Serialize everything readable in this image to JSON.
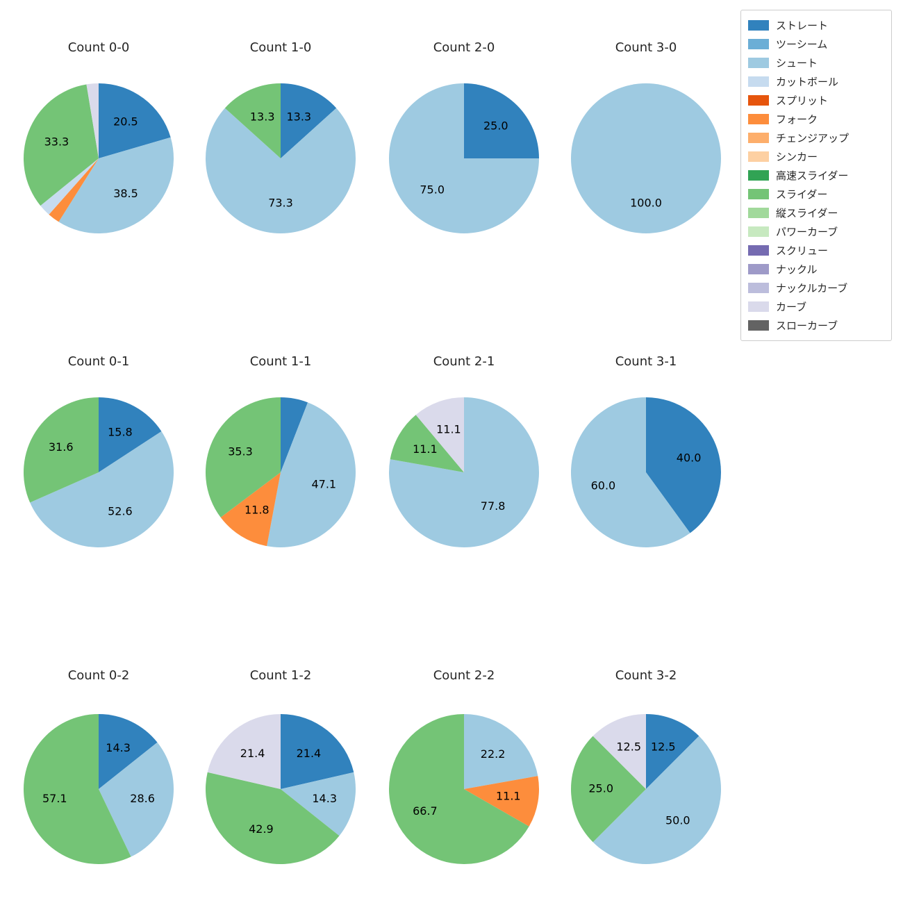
{
  "figure": {
    "background": "#ffffff"
  },
  "legend": {
    "position": "top-right",
    "items": [
      {
        "label": "ストレート",
        "color": "#3182bd"
      },
      {
        "label": "ツーシーム",
        "color": "#6baed6"
      },
      {
        "label": "シュート",
        "color": "#9ecae1"
      },
      {
        "label": "カットボール",
        "color": "#c6dbef"
      },
      {
        "label": "スプリット",
        "color": "#e6550d"
      },
      {
        "label": "フォーク",
        "color": "#fd8d3c"
      },
      {
        "label": "チェンジアップ",
        "color": "#fdae6b"
      },
      {
        "label": "シンカー",
        "color": "#fdd0a2"
      },
      {
        "label": "高速スライダー",
        "color": "#31a354"
      },
      {
        "label": "スライダー",
        "color": "#74c476"
      },
      {
        "label": "縦スライダー",
        "color": "#a1d99b"
      },
      {
        "label": "パワーカーブ",
        "color": "#c7e9c0"
      },
      {
        "label": "スクリュー",
        "color": "#756bb1"
      },
      {
        "label": "ナックル",
        "color": "#9e9ac8"
      },
      {
        "label": "ナックルカーブ",
        "color": "#bcbddc"
      },
      {
        "label": "カーブ",
        "color": "#dadaeb"
      },
      {
        "label": "スローカーブ",
        "color": "#636363"
      }
    ]
  },
  "chart_data": [
    {
      "type": "pie",
      "title": "Count 0-0",
      "startangle": 90,
      "direction": "clockwise",
      "slices": [
        {
          "label": "ストレート",
          "value": 20.5,
          "labeled": true
        },
        {
          "label": "シュート",
          "value": 38.5,
          "labeled": true
        },
        {
          "label": "フォーク",
          "value": 2.6,
          "labeled": false
        },
        {
          "label": "カットボール",
          "value": 2.6,
          "labeled": false
        },
        {
          "label": "スライダー",
          "value": 33.3,
          "labeled": true
        },
        {
          "label": "カーブ",
          "value": 2.6,
          "labeled": false
        }
      ]
    },
    {
      "type": "pie",
      "title": "Count 1-0",
      "startangle": 90,
      "direction": "clockwise",
      "slices": [
        {
          "label": "ストレート",
          "value": 13.3,
          "labeled": true
        },
        {
          "label": "シュート",
          "value": 73.3,
          "labeled": true
        },
        {
          "label": "スライダー",
          "value": 13.3,
          "labeled": true
        }
      ]
    },
    {
      "type": "pie",
      "title": "Count 2-0",
      "startangle": 90,
      "direction": "clockwise",
      "slices": [
        {
          "label": "ストレート",
          "value": 25.0,
          "labeled": true
        },
        {
          "label": "シュート",
          "value": 75.0,
          "labeled": true
        }
      ]
    },
    {
      "type": "pie",
      "title": "Count 3-0",
      "startangle": 90,
      "direction": "clockwise",
      "slices": [
        {
          "label": "シュート",
          "value": 100.0,
          "labeled": true
        }
      ]
    },
    {
      "type": "pie",
      "title": "Count 0-1",
      "startangle": 90,
      "direction": "clockwise",
      "slices": [
        {
          "label": "ストレート",
          "value": 15.8,
          "labeled": true
        },
        {
          "label": "シュート",
          "value": 52.6,
          "labeled": true
        },
        {
          "label": "スライダー",
          "value": 31.6,
          "labeled": true
        }
      ]
    },
    {
      "type": "pie",
      "title": "Count 1-1",
      "startangle": 90,
      "direction": "clockwise",
      "slices": [
        {
          "label": "ストレート",
          "value": 5.9,
          "labeled": false
        },
        {
          "label": "シュート",
          "value": 47.1,
          "labeled": true
        },
        {
          "label": "フォーク",
          "value": 11.8,
          "labeled": true
        },
        {
          "label": "スライダー",
          "value": 35.3,
          "labeled": true
        }
      ]
    },
    {
      "type": "pie",
      "title": "Count 2-1",
      "startangle": 90,
      "direction": "clockwise",
      "slices": [
        {
          "label": "シュート",
          "value": 77.8,
          "labeled": true
        },
        {
          "label": "スライダー",
          "value": 11.1,
          "labeled": true
        },
        {
          "label": "カーブ",
          "value": 11.1,
          "labeled": true
        }
      ]
    },
    {
      "type": "pie",
      "title": "Count 3-1",
      "startangle": 90,
      "direction": "clockwise",
      "slices": [
        {
          "label": "ストレート",
          "value": 40.0,
          "labeled": true
        },
        {
          "label": "シュート",
          "value": 60.0,
          "labeled": true
        }
      ]
    },
    {
      "type": "pie",
      "title": "Count 0-2",
      "startangle": 90,
      "direction": "clockwise",
      "slices": [
        {
          "label": "ストレート",
          "value": 14.3,
          "labeled": true
        },
        {
          "label": "シュート",
          "value": 28.6,
          "labeled": true
        },
        {
          "label": "スライダー",
          "value": 57.1,
          "labeled": true
        }
      ]
    },
    {
      "type": "pie",
      "title": "Count 1-2",
      "startangle": 90,
      "direction": "clockwise",
      "slices": [
        {
          "label": "ストレート",
          "value": 21.4,
          "labeled": true
        },
        {
          "label": "シュート",
          "value": 14.3,
          "labeled": true
        },
        {
          "label": "スライダー",
          "value": 42.9,
          "labeled": true
        },
        {
          "label": "カーブ",
          "value": 21.4,
          "labeled": true
        }
      ]
    },
    {
      "type": "pie",
      "title": "Count 2-2",
      "startangle": 90,
      "direction": "clockwise",
      "slices": [
        {
          "label": "シュート",
          "value": 22.2,
          "labeled": true
        },
        {
          "label": "フォーク",
          "value": 11.1,
          "labeled": true
        },
        {
          "label": "スライダー",
          "value": 66.7,
          "labeled": true
        }
      ]
    },
    {
      "type": "pie",
      "title": "Count 3-2",
      "startangle": 90,
      "direction": "clockwise",
      "slices": [
        {
          "label": "ストレート",
          "value": 12.5,
          "labeled": true
        },
        {
          "label": "シュート",
          "value": 50.0,
          "labeled": true
        },
        {
          "label": "スライダー",
          "value": 25.0,
          "labeled": true
        },
        {
          "label": "カーブ",
          "value": 12.5,
          "labeled": true
        }
      ]
    }
  ]
}
